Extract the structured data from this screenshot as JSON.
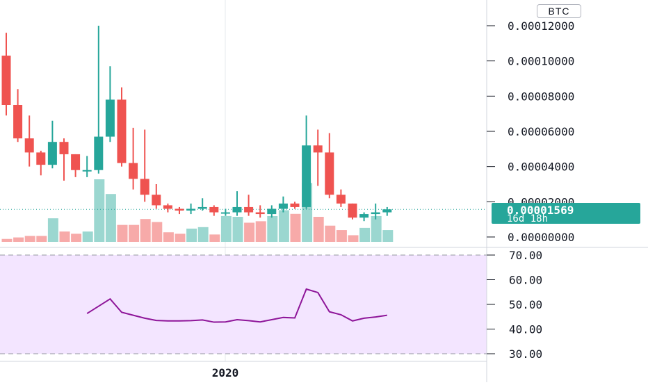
{
  "currency_badge": "BTC",
  "x_axis": {
    "labels": [
      "2020"
    ]
  },
  "last_price": {
    "value": "0.00001569",
    "countdown": "16d 18h"
  },
  "rsi_panel": {
    "ticks": [
      "70.00",
      "60.00",
      "50.00",
      "40.00",
      "30.00"
    ]
  },
  "colors": {
    "up": "#26a69a",
    "down": "#ef5350",
    "volume_up": "#9bd7d0",
    "volume_down": "#f7aaa9",
    "rsi_line": "#8e1599",
    "rsi_band": "#f3e5ff"
  },
  "chart_data": [
    {
      "type": "candlestick",
      "title": "",
      "y_axis": {
        "ticks": [
          "0.00012000",
          "0.00010000",
          "0.00008000",
          "0.00006000",
          "0.00004000",
          "0.00002000",
          "0.00000000"
        ],
        "range": [
          0,
          0.00012
        ]
      },
      "candles": [
        {
          "o": 0.000103,
          "h": 0.000116,
          "l": 6.9e-05,
          "c": 7.5e-05
        },
        {
          "o": 7.5e-05,
          "h": 8.4e-05,
          "l": 5.4e-05,
          "c": 5.6e-05
        },
        {
          "o": 5.6e-05,
          "h": 6.9e-05,
          "l": 4e-05,
          "c": 4.8e-05
        },
        {
          "o": 4.8e-05,
          "h": 4.9e-05,
          "l": 3.5e-05,
          "c": 4.1e-05
        },
        {
          "o": 4.1e-05,
          "h": 6.6e-05,
          "l": 3.9e-05,
          "c": 5.4e-05
        },
        {
          "o": 5.4e-05,
          "h": 5.6e-05,
          "l": 3.2e-05,
          "c": 4.7e-05
        },
        {
          "o": 4.7e-05,
          "h": 4.7e-05,
          "l": 3.4e-05,
          "c": 3.8e-05
        },
        {
          "o": 3.8e-05,
          "h": 4.6e-05,
          "l": 3.4e-05,
          "c": 3.8e-05
        },
        {
          "o": 3.8e-05,
          "h": 0.00012,
          "l": 3.6e-05,
          "c": 5.7e-05
        },
        {
          "o": 5.7e-05,
          "h": 9.7e-05,
          "l": 5.4e-05,
          "c": 7.8e-05
        },
        {
          "o": 7.8e-05,
          "h": 8.5e-05,
          "l": 4e-05,
          "c": 4.2e-05
        },
        {
          "o": 4.2e-05,
          "h": 6.2e-05,
          "l": 2.7e-05,
          "c": 3.3e-05
        },
        {
          "o": 3.3e-05,
          "h": 6.1e-05,
          "l": 2e-05,
          "c": 2.4e-05
        },
        {
          "o": 2.4e-05,
          "h": 3e-05,
          "l": 1.6e-05,
          "c": 1.8e-05
        },
        {
          "o": 1.8e-05,
          "h": 1.9e-05,
          "l": 1.4e-05,
          "c": 1.6e-05
        },
        {
          "o": 1.6e-05,
          "h": 1.7e-05,
          "l": 1.3e-05,
          "c": 1.5e-05
        },
        {
          "o": 1.5e-05,
          "h": 1.9e-05,
          "l": 1.3e-05,
          "c": 1.6e-05
        },
        {
          "o": 1.6e-05,
          "h": 2.2e-05,
          "l": 1.5e-05,
          "c": 1.7e-05
        },
        {
          "o": 1.7e-05,
          "h": 1.8e-05,
          "l": 1.2e-05,
          "c": 1.4e-05
        },
        {
          "o": 1.4e-05,
          "h": 1.6e-05,
          "l": 1.2e-05,
          "c": 1.4e-05
        },
        {
          "o": 1.4e-05,
          "h": 2.6e-05,
          "l": 1.2e-05,
          "c": 1.7e-05
        },
        {
          "o": 1.7e-05,
          "h": 2.4e-05,
          "l": 1.2e-05,
          "c": 1.4e-05
        },
        {
          "o": 1.4e-05,
          "h": 1.8e-05,
          "l": 1.1e-05,
          "c": 1.3e-05
        },
        {
          "o": 1.3e-05,
          "h": 1.8e-05,
          "l": 1.1e-05,
          "c": 1.6e-05
        },
        {
          "o": 1.6e-05,
          "h": 2.3e-05,
          "l": 1.4e-05,
          "c": 1.9e-05
        },
        {
          "o": 1.9e-05,
          "h": 2e-05,
          "l": 1.6e-05,
          "c": 1.7e-05
        },
        {
          "o": 1.7e-05,
          "h": 6.9e-05,
          "l": 1.6e-05,
          "c": 5.2e-05
        },
        {
          "o": 5.2e-05,
          "h": 6.1e-05,
          "l": 2.9e-05,
          "c": 4.8e-05
        },
        {
          "o": 4.8e-05,
          "h": 5.9e-05,
          "l": 2.2e-05,
          "c": 2.4e-05
        },
        {
          "o": 2.4e-05,
          "h": 2.7e-05,
          "l": 1.7e-05,
          "c": 1.9e-05
        },
        {
          "o": 1.9e-05,
          "h": 1.9e-05,
          "l": 1e-05,
          "c": 1.1e-05
        },
        {
          "o": 1.1e-05,
          "h": 1.4e-05,
          "l": 9e-06,
          "c": 1.3e-05
        },
        {
          "o": 1.3e-05,
          "h": 1.9e-05,
          "l": 1e-05,
          "c": 1.4e-05
        },
        {
          "o": 1.4e-05,
          "h": 1.7e-05,
          "l": 1.2e-05,
          "c": 1.57e-05
        }
      ],
      "volume": [
        4,
        6,
        8,
        8,
        32,
        14,
        11,
        14,
        85,
        65,
        23,
        23,
        31,
        27,
        13,
        11,
        18,
        20,
        10,
        35,
        34,
        26,
        28,
        35,
        43,
        38,
        80,
        34,
        22,
        16,
        9,
        19,
        35,
        16
      ],
      "last_value": 1.569e-05
    },
    {
      "type": "line",
      "y_axis": {
        "ticks": [
          "70.00",
          "60.00",
          "50.00",
          "40.00",
          "30.00"
        ],
        "range": [
          30,
          70
        ]
      },
      "x_index": [
        7,
        9,
        10,
        11,
        12,
        13,
        14,
        15,
        16,
        17,
        18,
        19,
        20,
        21,
        22,
        23,
        24,
        25,
        26,
        27,
        28,
        29,
        30,
        31,
        32,
        33
      ],
      "values": [
        46.3,
        52.2,
        46.8,
        45.6,
        44.4,
        43.5,
        43.3,
        43.3,
        43.4,
        43.7,
        42.8,
        42.9,
        43.8,
        43.4,
        42.9,
        43.8,
        44.7,
        44.5,
        56.2,
        54.8,
        47.0,
        45.8,
        43.3,
        44.4,
        44.9,
        45.6
      ]
    }
  ]
}
